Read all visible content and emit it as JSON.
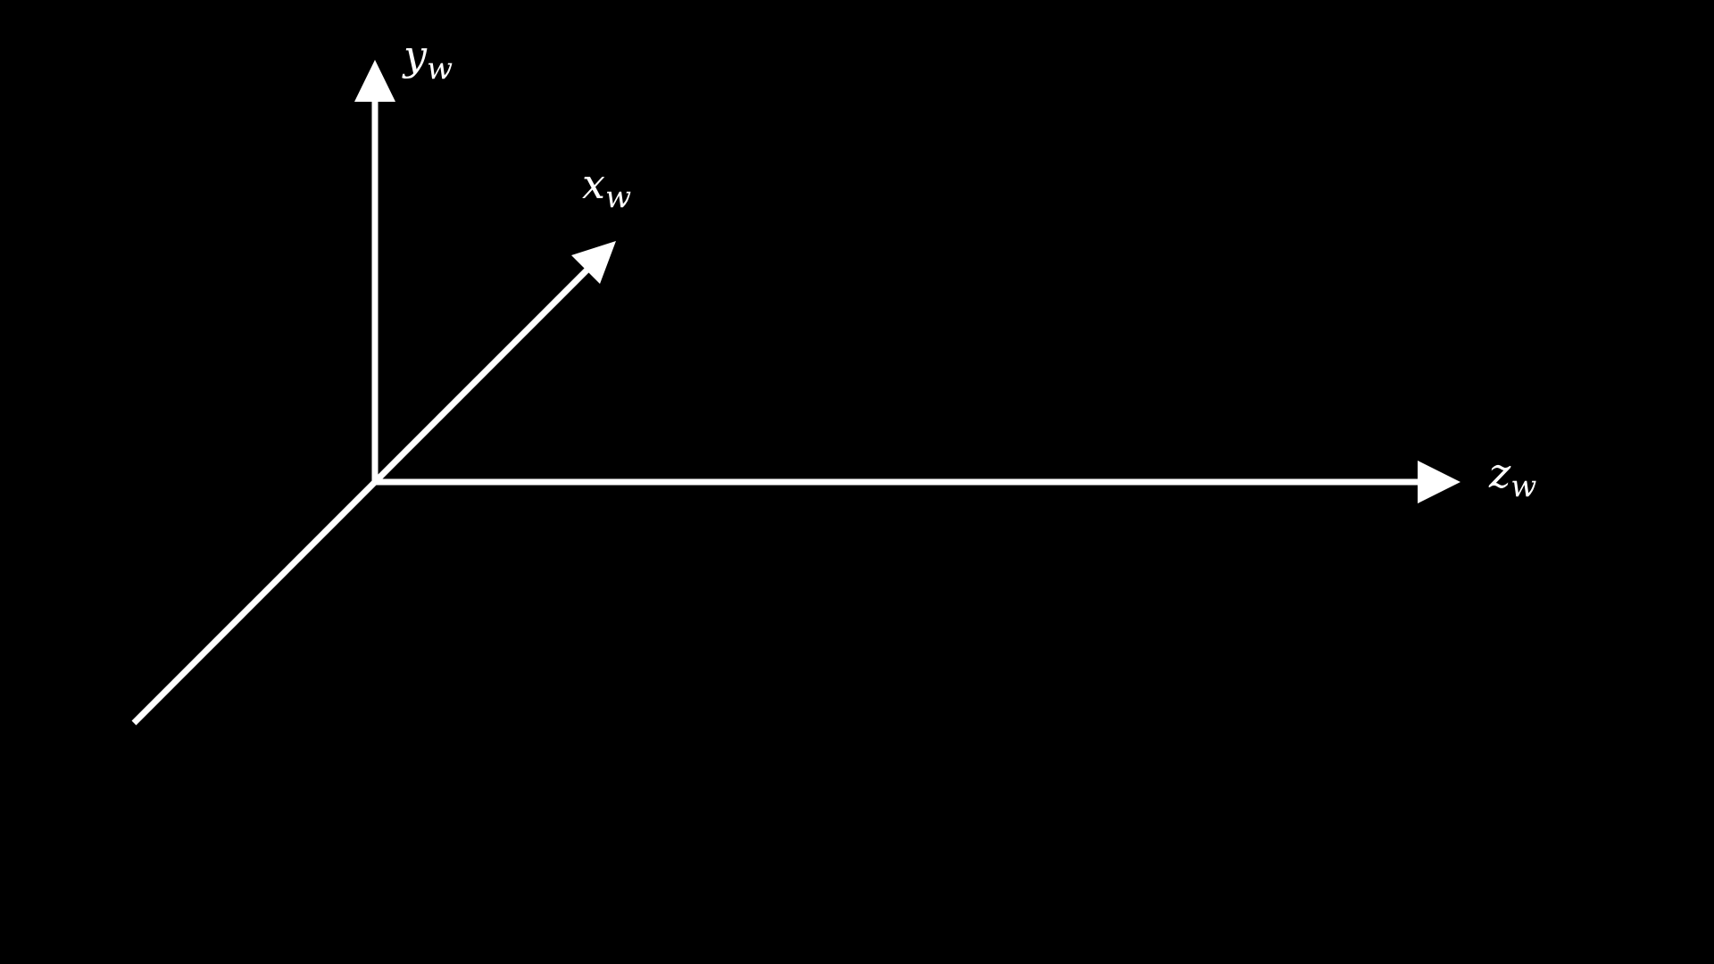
{
  "diagram": {
    "background": "#000000",
    "stroke_color": "#ffffff",
    "axes": {
      "y": {
        "letter": "y",
        "subscript": "w"
      },
      "x": {
        "letter": "x",
        "subscript": "w"
      },
      "z": {
        "letter": "z",
        "subscript": "w"
      }
    }
  }
}
